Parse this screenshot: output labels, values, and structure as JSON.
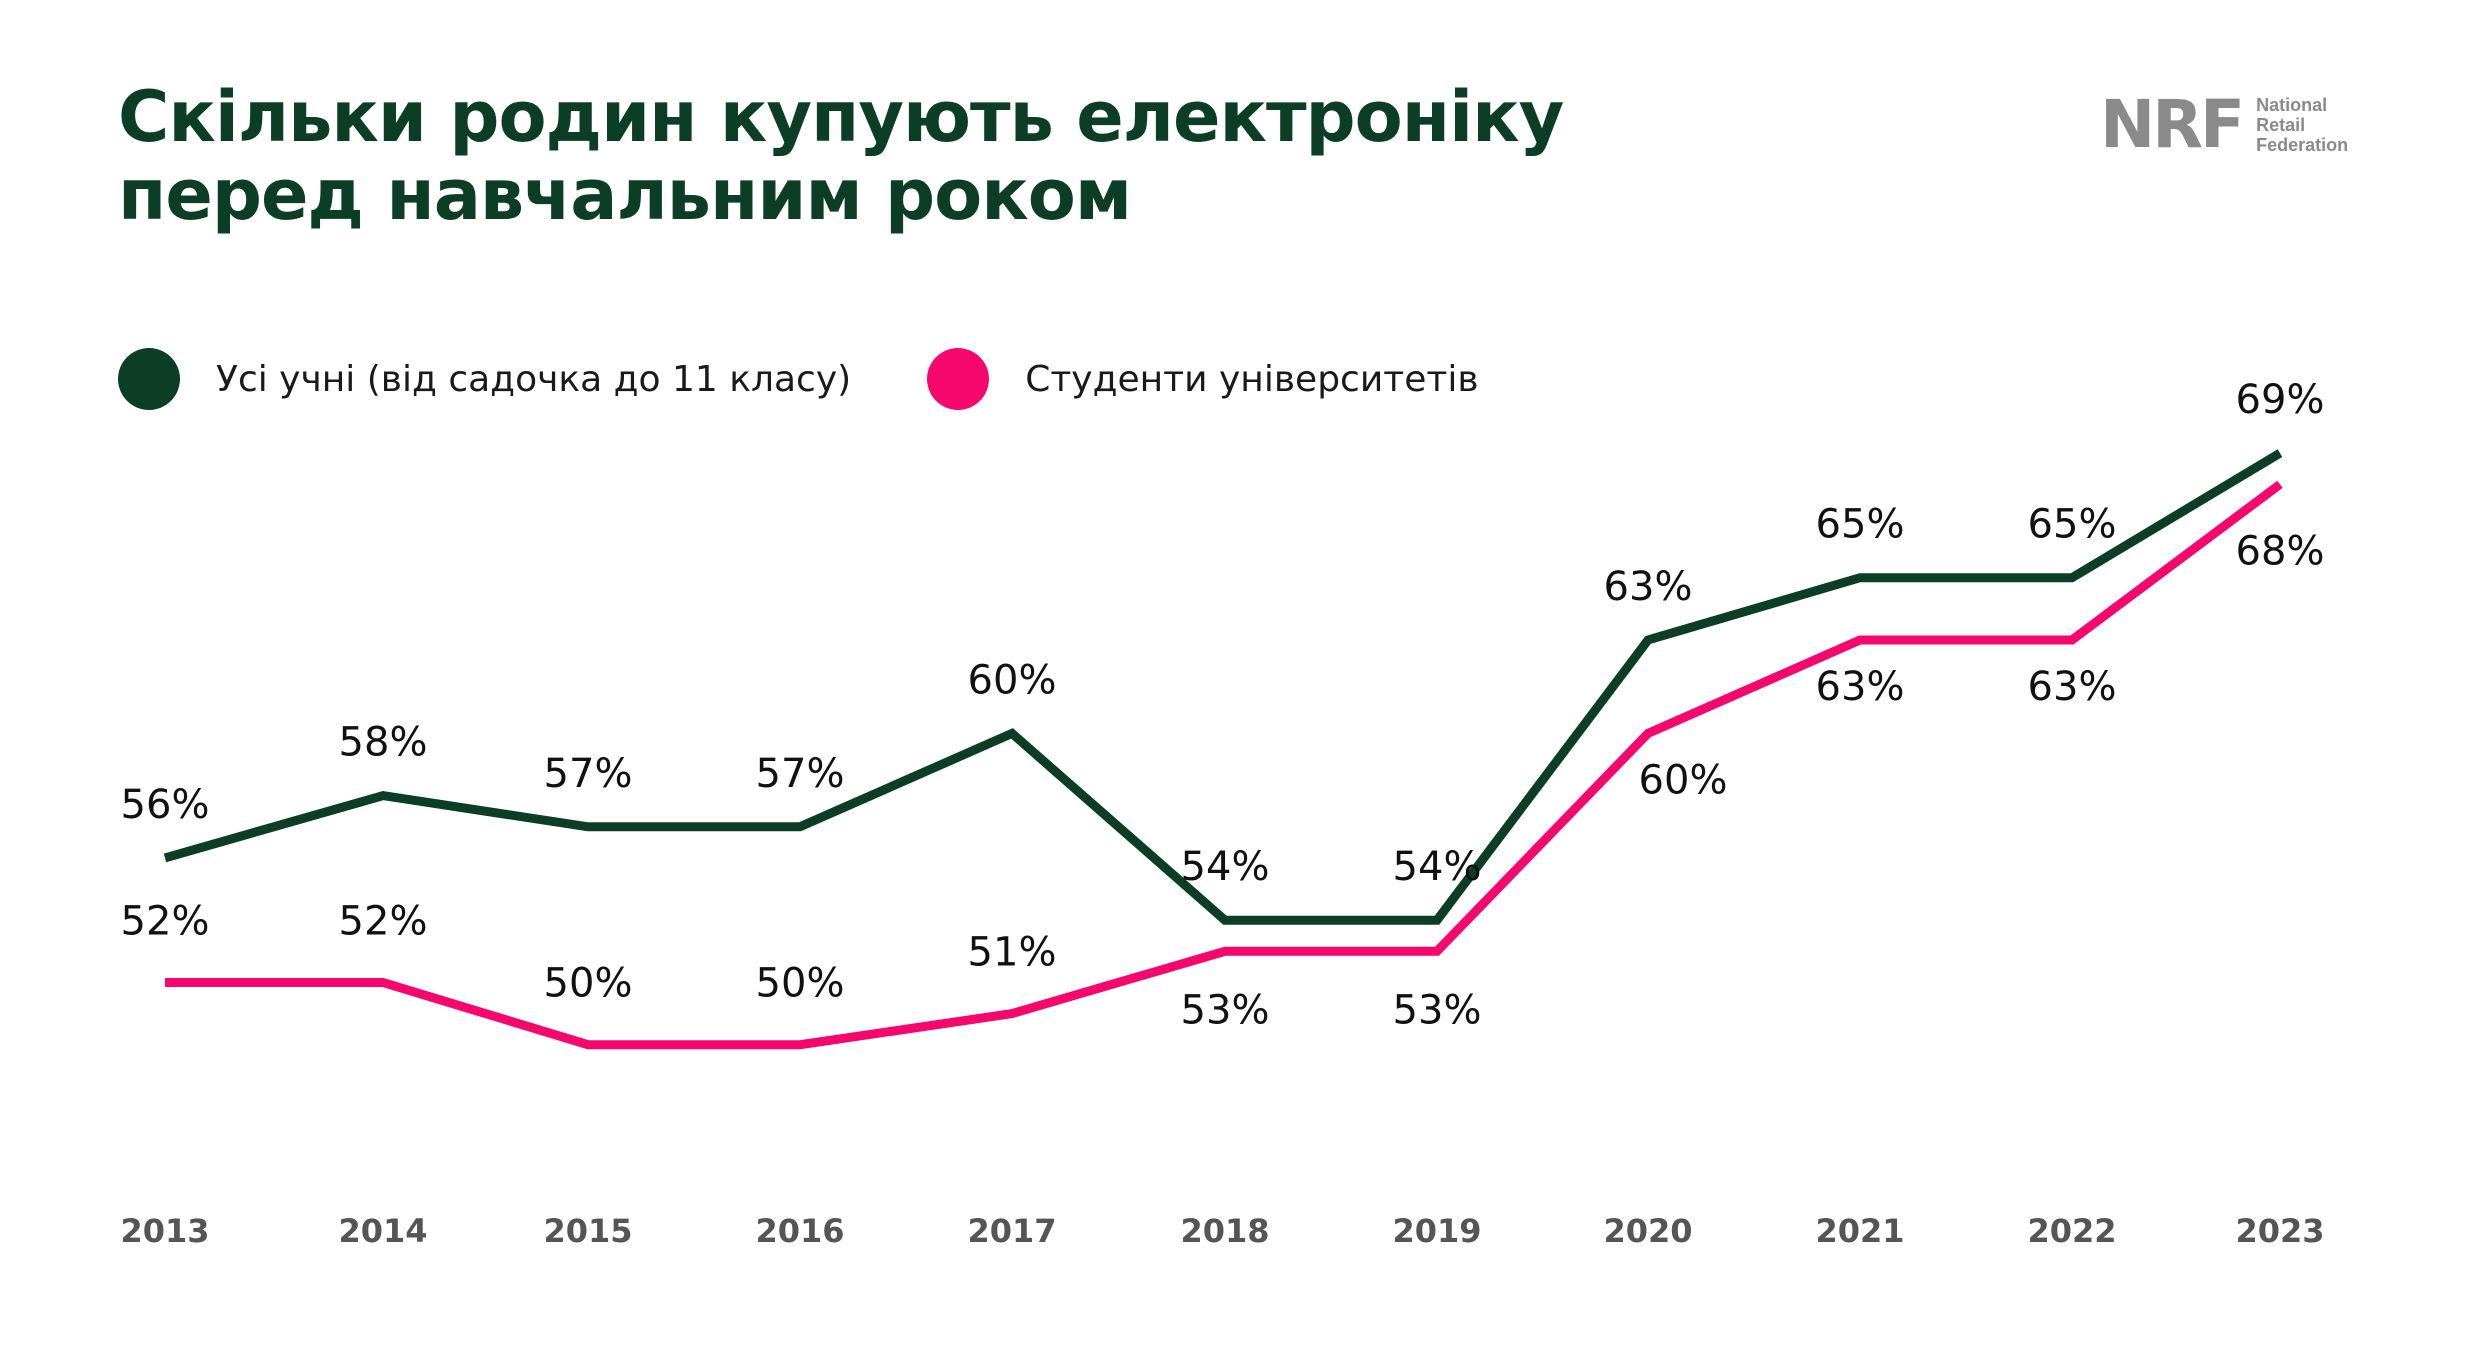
{
  "header": {
    "title_line1": "Скільки родин купують електроніку",
    "title_line2": "перед навчальним роком"
  },
  "logo": {
    "mark": "NRF",
    "line1": "National",
    "line2": "Retail",
    "line3": "Federation"
  },
  "chart_data": {
    "type": "line",
    "title": "Скільки родин купують електроніку перед навчальним роком",
    "categories": [
      "2013",
      "2014",
      "2015",
      "2016",
      "2017",
      "2018",
      "2019",
      "2020",
      "2021",
      "2022",
      "2023"
    ],
    "series": [
      {
        "name": "Усі учні (від садочка до 11 класу)",
        "color": "#0c3d25",
        "values": [
          56,
          58,
          57,
          57,
          60,
          54,
          54,
          63,
          65,
          65,
          69
        ],
        "labels": [
          "56%",
          "58%",
          "57%",
          "57%",
          "60%",
          "54%",
          "54%",
          "63%",
          "65%",
          "65%",
          "69%"
        ]
      },
      {
        "name": "Студенти університетів",
        "color": "#f5076e",
        "values": [
          52,
          52,
          50,
          50,
          51,
          53,
          53,
          60,
          63,
          63,
          68
        ],
        "labels": [
          "52%",
          "52%",
          "50%",
          "50%",
          "51%",
          "53%",
          "53%",
          "60%",
          "63%",
          "63%",
          "68%"
        ]
      }
    ],
    "unit": "%",
    "grid": false,
    "legend_position": "top-left",
    "xlabel": "",
    "ylabel": ""
  }
}
